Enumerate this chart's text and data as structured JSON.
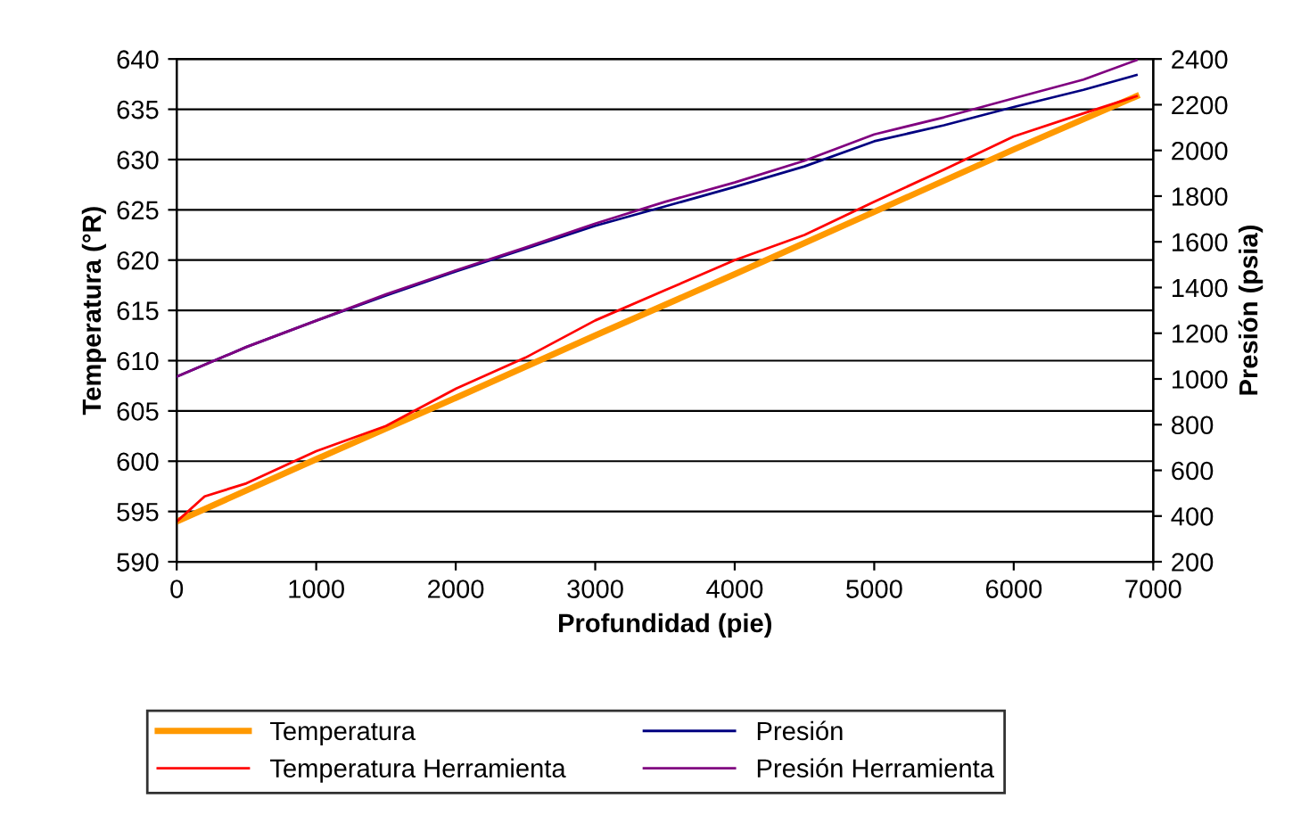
{
  "chart_data": {
    "type": "line",
    "xlabel": "Profundidad (pie)",
    "ylabel": "Temperatura (°R)",
    "y2label": "Presión (psia)",
    "xlim": [
      0,
      7000
    ],
    "xticks": [
      0,
      1000,
      2000,
      3000,
      4000,
      5000,
      6000,
      7000
    ],
    "ylim": [
      590,
      640
    ],
    "yticks": [
      590,
      595,
      600,
      605,
      610,
      615,
      620,
      625,
      630,
      635,
      640
    ],
    "y2lim": [
      200,
      2400
    ],
    "y2ticks": [
      200,
      400,
      600,
      800,
      1000,
      1200,
      1400,
      1600,
      1800,
      2000,
      2200,
      2400
    ],
    "grid": "y",
    "legend": "bottom",
    "marker": "none",
    "line_style": "solid",
    "series": [
      {
        "name": "Temperatura",
        "color": "#ff9900",
        "x": [
          0,
          1000,
          2000,
          3000,
          4000,
          5000,
          6000,
          6880
        ],
        "values": [
          594,
          600.2,
          606.3,
          612.5,
          618.6,
          624.8,
          631,
          636.3
        ]
      },
      {
        "name": "Temperatura Herramienta",
        "color": "#ff0000",
        "x": [
          0,
          200,
          500,
          1000,
          1500,
          2000,
          2500,
          3000,
          3500,
          4000,
          4500,
          5000,
          5500,
          6000,
          6500,
          6880
        ],
        "values": [
          594,
          596.5,
          597.8,
          601,
          603.5,
          607.2,
          610.3,
          614,
          617,
          620,
          622.5,
          625.8,
          629,
          632.3,
          634.6,
          636.3
        ]
      },
      {
        "name": "Presión",
        "color": "#000080",
        "axis": "y2",
        "x": [
          0,
          500,
          1000,
          1500,
          2000,
          2500,
          3000,
          3500,
          4000,
          4500,
          5000,
          5500,
          6000,
          6500,
          6880
        ],
        "values": [
          1010,
          1140,
          1255,
          1365,
          1470,
          1570,
          1670,
          1755,
          1840,
          1930,
          2040,
          2110,
          2190,
          2265,
          2330
        ]
      },
      {
        "name": "Presión Herramienta",
        "color": "#800080",
        "axis": "y2",
        "x": [
          0,
          500,
          1000,
          1500,
          2000,
          2500,
          3000,
          3500,
          4000,
          4500,
          5000,
          5500,
          6000,
          6500,
          6880
        ],
        "values": [
          1010,
          1140,
          1255,
          1370,
          1475,
          1575,
          1680,
          1775,
          1860,
          1955,
          2070,
          2145,
          2228,
          2310,
          2395
        ]
      }
    ]
  }
}
